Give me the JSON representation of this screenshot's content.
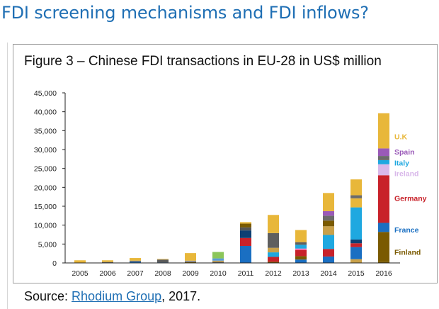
{
  "page": {
    "heading": "FDI screening mechanisms and FDI inflows?"
  },
  "figure": {
    "title": "Figure 3 – Chinese FDI transactions in EU-28 in US$ million"
  },
  "source": {
    "prefix": "Source: ",
    "link_text": "Rhodium Group",
    "suffix": ", 2017."
  },
  "chart_data": {
    "type": "bar",
    "stacked": true,
    "title": "Figure 3 – Chinese FDI transactions in EU-28 in US$ million",
    "xlabel": "",
    "ylabel": "",
    "ylim": [
      0,
      45000
    ],
    "yticks": [
      0,
      5000,
      10000,
      15000,
      20000,
      25000,
      30000,
      35000,
      40000,
      45000
    ],
    "ytick_labels": [
      "0",
      "5,000",
      "10,000",
      "15,000",
      "20,000",
      "25,000",
      "30,000",
      "35,000",
      "40,000",
      "45,000"
    ],
    "categories": [
      "2005",
      "2006",
      "2007",
      "2008",
      "2009",
      "2010",
      "2011",
      "2012",
      "2013",
      "2014",
      "2015",
      "2016"
    ],
    "grid": false,
    "legend_position": "right of 2016 bar",
    "segments": [
      [
        {
          "value": 700,
          "color": "#e8b73a"
        }
      ],
      [
        {
          "value": 250,
          "color": "#6b6b6b"
        },
        {
          "value": 450,
          "color": "#e8b73a"
        }
      ],
      [
        {
          "value": 300,
          "color": "#1a6fc2"
        },
        {
          "value": 300,
          "color": "#6b6b6b"
        },
        {
          "value": 700,
          "color": "#e8b73a"
        }
      ],
      [
        {
          "value": 150,
          "color": "#0d3f73"
        },
        {
          "value": 750,
          "color": "#5a5a5a"
        },
        {
          "value": 150,
          "color": "#e8b73a"
        }
      ],
      [
        {
          "value": 200,
          "color": "#7a5a00"
        },
        {
          "value": 400,
          "color": "#8a8a8a"
        },
        {
          "value": 2000,
          "color": "#e8b73a"
        }
      ],
      [
        {
          "value": 300,
          "color": "#6b6b6b"
        },
        {
          "value": 300,
          "color": "#c9a14a"
        },
        {
          "value": 600,
          "color": "#5a9bd5"
        },
        {
          "value": 1700,
          "color": "#8cc65a"
        }
      ],
      [
        {
          "value": 4500,
          "color": "#1a6fc2"
        },
        {
          "value": 2100,
          "color": "#c8222a"
        },
        {
          "value": 2000,
          "color": "#0d3f73"
        },
        {
          "value": 800,
          "color": "#555555"
        },
        {
          "value": 1000,
          "color": "#7a5a00"
        },
        {
          "value": 400,
          "color": "#e8b73a"
        }
      ],
      [
        {
          "value": 300,
          "color": "#7a5a00"
        },
        {
          "value": 1300,
          "color": "#c8222a"
        },
        {
          "value": 1200,
          "color": "#1fa8e0"
        },
        {
          "value": 1200,
          "color": "#c9a14a"
        },
        {
          "value": 3900,
          "color": "#5f5f5f"
        },
        {
          "value": 4800,
          "color": "#e8b73a"
        }
      ],
      [
        {
          "value": 900,
          "color": "#1a6fc2"
        },
        {
          "value": 900,
          "color": "#7a5a00"
        },
        {
          "value": 1600,
          "color": "#c8222a"
        },
        {
          "value": 400,
          "color": "#ff66a8"
        },
        {
          "value": 1000,
          "color": "#1fa8e0"
        },
        {
          "value": 700,
          "color": "#5f5f5f"
        },
        {
          "value": 3200,
          "color": "#e8b73a"
        }
      ],
      [
        {
          "value": 1700,
          "color": "#1a6fc2"
        },
        {
          "value": 2000,
          "color": "#c8222a"
        },
        {
          "value": 3700,
          "color": "#1fa8e0"
        },
        {
          "value": 2300,
          "color": "#c9a14a"
        },
        {
          "value": 1500,
          "color": "#7a5a00"
        },
        {
          "value": 1300,
          "color": "#6b6b6b"
        },
        {
          "value": 1200,
          "color": "#9a5ab8"
        },
        {
          "value": 4800,
          "color": "#e8b73a"
        }
      ],
      [
        {
          "value": 1000,
          "color": "#c9a14a"
        },
        {
          "value": 3200,
          "color": "#1a6fc2"
        },
        {
          "value": 1000,
          "color": "#c8222a"
        },
        {
          "value": 1000,
          "color": "#0d3f73"
        },
        {
          "value": 8500,
          "color": "#1fa8e0"
        },
        {
          "value": 2400,
          "color": "#e8b73a"
        },
        {
          "value": 800,
          "color": "#6b6b6b"
        },
        {
          "value": 4200,
          "color": "#e8b73a"
        }
      ],
      [
        {
          "value": 400,
          "color": "#7a5a00",
          "label": "Finland"
        },
        {
          "value": 7800,
          "color": "#7a5a00",
          "label": "Finland"
        },
        {
          "value": 2400,
          "color": "#1a6fc2",
          "label": "France"
        },
        {
          "value": 12600,
          "color": "#c8222a",
          "label": "Germany"
        },
        {
          "value": 2900,
          "color": "#d9b8ea",
          "label": "Ireland"
        },
        {
          "value": 1100,
          "color": "#1fa8e0",
          "label": "Italy"
        },
        {
          "value": 1100,
          "color": "#6b6b6b",
          "label": ""
        },
        {
          "value": 2000,
          "color": "#9a5ab8",
          "label": "Spain"
        },
        {
          "value": 9300,
          "color": "#e8b73a",
          "label": "U.K"
        }
      ]
    ],
    "legend": [
      {
        "label": "U.K",
        "color": "#e8b73a"
      },
      {
        "label": "Spain",
        "color": "#9a5ab8"
      },
      {
        "label": "Italy",
        "color": "#1fa8e0"
      },
      {
        "label": "Ireland",
        "color": "#d9b8ea"
      },
      {
        "label": "Germany",
        "color": "#c8222a"
      },
      {
        "label": "France",
        "color": "#1a6fc2"
      },
      {
        "label": "Finland",
        "color": "#7a5a00"
      }
    ]
  }
}
